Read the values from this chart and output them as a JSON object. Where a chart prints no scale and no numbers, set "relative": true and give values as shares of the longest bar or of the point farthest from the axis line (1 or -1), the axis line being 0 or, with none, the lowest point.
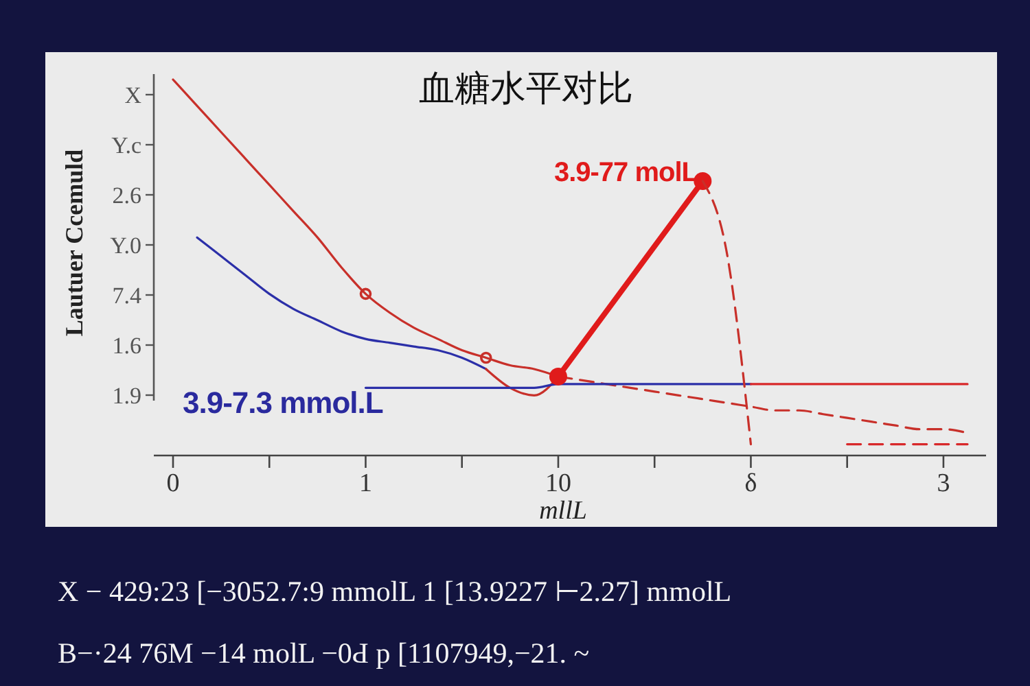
{
  "chart_data": {
    "type": "line",
    "relative": true,
    "title": "血糖水平对比",
    "xlabel": "mllL",
    "ylabel": "Lautuer Ccemuld",
    "categories": [
      "0",
      null,
      null,
      null,
      null,
      null,
      null,
      null,
      "1",
      null,
      null,
      null,
      null,
      null,
      null,
      null,
      "10",
      null,
      null,
      null,
      null,
      null,
      null,
      null,
      "δ",
      null,
      null,
      null,
      null,
      null,
      null,
      null,
      "3",
      null
    ],
    "series": [
      {
        "color": "#c8302a",
        "values": [
          1.0,
          0.93,
          0.86,
          0.79,
          0.72,
          0.65,
          0.58,
          0.5,
          0.43,
          0.38,
          0.34,
          0.31,
          0.28,
          0.26,
          0.24,
          0.23,
          0.21,
          null,
          null,
          null,
          null,
          null,
          null,
          null,
          null,
          null,
          null,
          null,
          null,
          null,
          null,
          null,
          null,
          null
        ]
      },
      {
        "color": "#c8302a",
        "line_style": "dashed",
        "values": [
          null,
          null,
          null,
          null,
          null,
          null,
          null,
          null,
          null,
          null,
          null,
          null,
          null,
          null,
          null,
          null,
          0.21,
          0.2,
          0.19,
          0.18,
          0.17,
          0.16,
          0.15,
          0.14,
          0.13,
          0.12,
          0.12,
          0.11,
          0.1,
          0.09,
          0.08,
          0.07,
          0.07,
          0.06
        ]
      },
      {
        "type": "scatter",
        "marker": "circle",
        "color": "#c8302a",
        "values": [
          null,
          null,
          null,
          null,
          null,
          null,
          null,
          null,
          0.43,
          null,
          null,
          null,
          null,
          0.26,
          null,
          null,
          null,
          null,
          null,
          null,
          null,
          null,
          null,
          null,
          null,
          null,
          null,
          null,
          null,
          null,
          null,
          null,
          null,
          null
        ]
      },
      {
        "color": "#2b2fa8",
        "values": [
          null,
          0.58,
          0.53,
          0.48,
          0.43,
          0.39,
          0.36,
          0.33,
          0.31,
          0.3,
          0.29,
          0.28,
          0.26,
          0.23,
          null,
          null,
          null,
          null,
          null,
          null,
          null,
          null,
          null,
          null,
          null,
          null,
          null,
          null,
          null,
          null,
          null,
          null,
          null,
          null
        ]
      },
      {
        "color": "#c8302a",
        "values": [
          null,
          null,
          null,
          null,
          null,
          null,
          null,
          null,
          null,
          null,
          null,
          null,
          null,
          0.23,
          0.18,
          0.16,
          0.21,
          null,
          null,
          null,
          null,
          null,
          null,
          null,
          null,
          null,
          null,
          null,
          null,
          null,
          null,
          null,
          null,
          null
        ]
      },
      {
        "color": "#2b2fa8",
        "values": [
          null,
          null,
          null,
          null,
          null,
          null,
          null,
          null,
          0.18,
          0.18,
          0.18,
          0.18,
          0.18,
          0.18,
          0.18,
          0.18,
          0.19,
          0.19,
          0.19,
          0.19,
          0.19,
          0.19,
          0.19,
          0.19,
          0.19,
          null,
          null,
          null,
          null,
          null,
          null,
          null,
          null,
          null
        ]
      },
      {
        "color": "#d8282a",
        "values": [
          null,
          null,
          null,
          null,
          null,
          null,
          null,
          null,
          null,
          null,
          null,
          null,
          null,
          null,
          null,
          null,
          null,
          null,
          null,
          null,
          null,
          null,
          null,
          null,
          0.19,
          0.19,
          0.19,
          0.19,
          0.19,
          0.19,
          0.19,
          0.19,
          0.19,
          0.19
        ]
      },
      {
        "color": "#e01b1b",
        "marker": "circle",
        "values": [
          null,
          null,
          null,
          null,
          null,
          null,
          null,
          null,
          null,
          null,
          null,
          null,
          null,
          null,
          null,
          null,
          0.21,
          null,
          null,
          null,
          null,
          null,
          0.73,
          null,
          null,
          null,
          null,
          null,
          null,
          null,
          null,
          null,
          null,
          null
        ]
      },
      {
        "color": "#c8302a",
        "line_style": "dashed",
        "values": [
          null,
          null,
          null,
          null,
          null,
          null,
          null,
          null,
          null,
          null,
          null,
          null,
          null,
          null,
          null,
          null,
          null,
          null,
          null,
          null,
          null,
          null,
          0.73,
          0.54,
          0.03,
          null,
          null,
          null,
          null,
          null,
          null,
          null,
          null,
          null
        ]
      },
      {
        "color": "#d8282a",
        "line_style": "dashed",
        "values": [
          null,
          null,
          null,
          null,
          null,
          null,
          null,
          null,
          null,
          null,
          null,
          null,
          null,
          null,
          null,
          null,
          null,
          null,
          null,
          null,
          null,
          null,
          null,
          null,
          null,
          null,
          null,
          null,
          0.03,
          0.03,
          0.03,
          0.03,
          0.03,
          0.03
        ]
      }
    ],
    "annotations": [
      "3.9-77 molL",
      "3.9-7.3 mmol.L",
      "X",
      "Y.c",
      "2.6",
      "Y.0",
      "7.4",
      "1.6",
      "1.9",
      "X − 429:23 [−3052.7:9  mmolL 1  [13.9227 ⊢2.27]  mmolL",
      "B−·24 76M −14 molL −0Ԁ p [1107949,−21. ~"
    ]
  }
}
